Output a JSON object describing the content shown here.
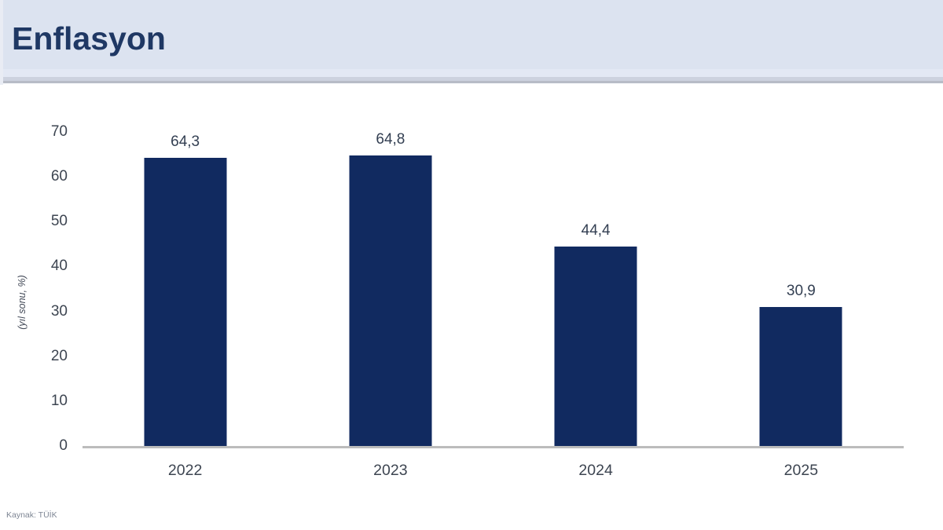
{
  "header": {
    "title": "Enflasyon"
  },
  "footer": {
    "source": "Kaynak: TÜİK"
  },
  "colors": {
    "header_bg": "#dce3f0",
    "header_border": "#b7bbc6",
    "title_text": "#1f3864",
    "bar_fill": "#112a60",
    "axis_line": "#bcbcbc",
    "tick_text": "#3d4551",
    "value_label_text": "#333f52",
    "source_text": "#7e8694"
  },
  "chart_data": {
    "type": "bar",
    "title": "Enflasyon",
    "categories": [
      "2022",
      "2023",
      "2024",
      "2025"
    ],
    "values": [
      64.3,
      64.8,
      44.4,
      30.9
    ],
    "value_labels": [
      "64,3",
      "64,8",
      "44,4",
      "30,9"
    ],
    "xlabel": "",
    "ylabel": "(yıl sonu, %)",
    "ylim": [
      0,
      70
    ],
    "ytick_step": 10,
    "yticks": [
      0,
      10,
      20,
      30,
      40,
      50,
      60,
      70
    ],
    "grid": false,
    "legend": false,
    "bar_color": "#112a60",
    "source": "Kaynak: TÜİK"
  }
}
